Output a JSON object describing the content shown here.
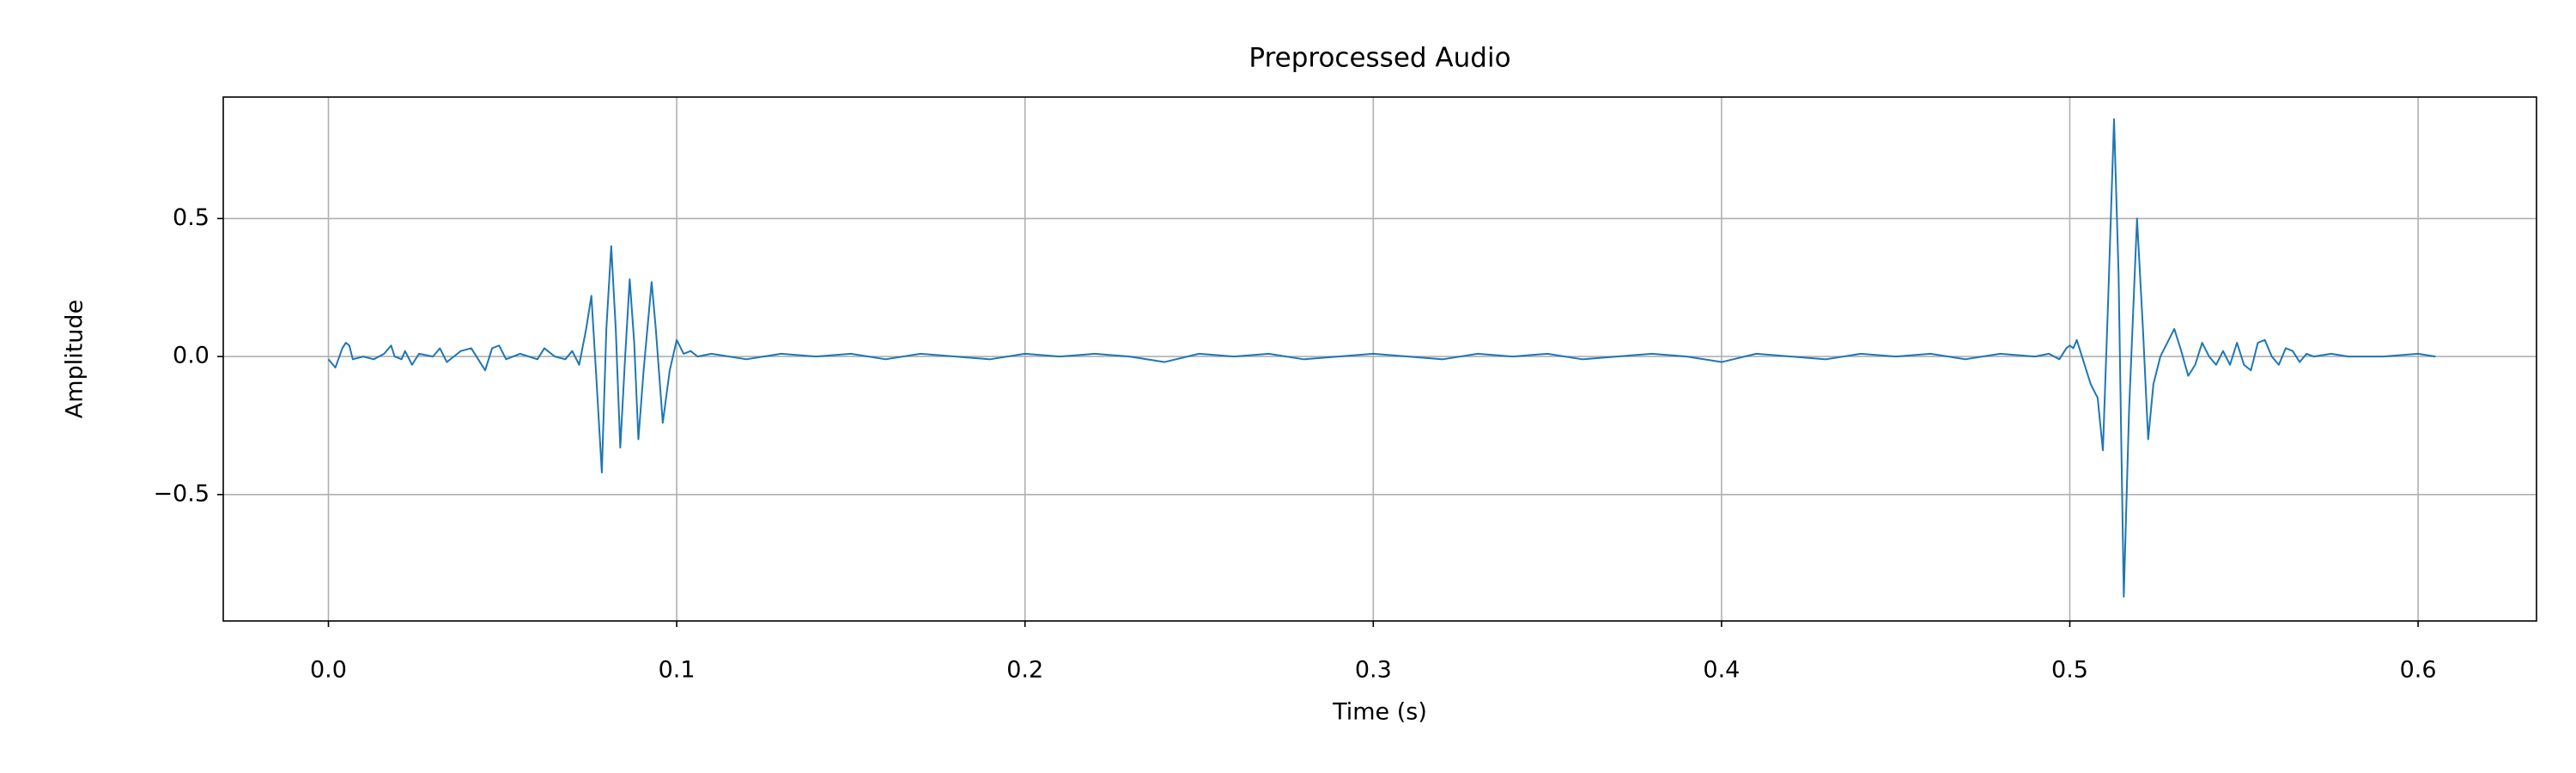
{
  "chart_data": {
    "type": "line",
    "title": "Preprocessed Audio",
    "x_label": "Time (s)",
    "y_label": "Amplitude",
    "grid": true,
    "xlim": [
      -0.0302,
      0.634
    ],
    "ylim": [
      -0.958,
      0.94
    ],
    "xticks": [
      {
        "value": 0,
        "label": "0.0"
      },
      0.1,
      0.2,
      0.3,
      0.4,
      0.5,
      0.6
    ],
    "yticks": [
      {
        "value": -0.5,
        "label": "−0.5"
      },
      {
        "value": 0,
        "label": "0.0"
      },
      0.5
    ],
    "series": [
      {
        "name": "Preprocessed Audio",
        "color": "#1f77b4",
        "x": [
          0,
          0.002,
          0.004,
          0.005,
          0.006,
          0.007,
          0.01,
          0.013,
          0.016,
          0.018,
          0.019,
          0.021,
          0.022,
          0.024,
          0.026,
          0.03,
          0.032,
          0.034,
          0.036,
          0.038,
          0.041,
          0.043,
          0.045,
          0.047,
          0.049,
          0.051,
          0.055,
          0.06,
          0.062,
          0.065,
          0.068,
          0.07,
          0.072,
          0.074,
          0.0755,
          0.0768,
          0.0785,
          0.0798,
          0.0812,
          0.0825,
          0.0838,
          0.0852,
          0.0865,
          0.0878,
          0.089,
          0.0905,
          0.0928,
          0.094,
          0.096,
          0.098,
          0.1,
          0.102,
          0.104,
          0.106,
          0.11,
          0.12,
          0.13,
          0.14,
          0.15,
          0.16,
          0.17,
          0.18,
          0.19,
          0.2,
          0.21,
          0.22,
          0.23,
          0.24,
          0.25,
          0.26,
          0.27,
          0.28,
          0.29,
          0.3,
          0.31,
          0.32,
          0.33,
          0.34,
          0.35,
          0.36,
          0.37,
          0.38,
          0.39,
          0.4,
          0.41,
          0.42,
          0.43,
          0.44,
          0.45,
          0.46,
          0.47,
          0.48,
          0.49,
          0.494,
          0.497,
          0.499,
          0.5,
          0.501,
          0.502,
          0.504,
          0.506,
          0.508,
          0.5095,
          0.511,
          0.5127,
          0.514,
          0.5155,
          0.517,
          0.5193,
          0.521,
          0.5225,
          0.524,
          0.526,
          0.528,
          0.53,
          0.532,
          0.534,
          0.536,
          0.538,
          0.54,
          0.542,
          0.544,
          0.546,
          0.548,
          0.55,
          0.552,
          0.554,
          0.556,
          0.558,
          0.56,
          0.562,
          0.564,
          0.566,
          0.568,
          0.57,
          0.575,
          0.58,
          0.59,
          0.6,
          0.605
        ],
        "values": [
          -0.01,
          -0.04,
          0.03,
          0.05,
          0.04,
          -0.01,
          0,
          -0.01,
          0.01,
          0.04,
          0,
          -0.01,
          0.02,
          -0.03,
          0.01,
          0,
          0.03,
          -0.02,
          0,
          0.02,
          0.03,
          -0.01,
          -0.05,
          0.03,
          0.04,
          -0.01,
          0.01,
          -0.01,
          0.03,
          0,
          -0.01,
          0.02,
          -0.03,
          0.1,
          0.22,
          -0.05,
          -0.42,
          0.1,
          0.4,
          0.1,
          -0.33,
          0,
          0.28,
          0.05,
          -0.3,
          -0.05,
          0.27,
          0.1,
          -0.24,
          -0.05,
          0.06,
          0.01,
          0.02,
          0,
          0.01,
          -0.01,
          0.01,
          0,
          0.01,
          -0.01,
          0.01,
          0,
          -0.01,
          0.01,
          0,
          0.01,
          0,
          -0.02,
          0.01,
          0,
          0.01,
          -0.01,
          0,
          0.01,
          0,
          -0.01,
          0.01,
          0,
          0.01,
          -0.01,
          0,
          0.01,
          0,
          -0.02,
          0.01,
          0,
          -0.01,
          0.01,
          0,
          0.01,
          -0.01,
          0.01,
          0,
          0.01,
          -0.01,
          0.03,
          0.04,
          0.03,
          0.06,
          -0.02,
          -0.1,
          -0.15,
          -0.34,
          0.2,
          0.86,
          0.3,
          -0.87,
          -0.2,
          0.5,
          0.1,
          -0.3,
          -0.1,
          0,
          0.05,
          0.1,
          0.02,
          -0.07,
          -0.03,
          0.05,
          0,
          -0.03,
          0.02,
          -0.03,
          0.05,
          -0.03,
          -0.05,
          0.05,
          0.06,
          0,
          -0.03,
          0.03,
          0.02,
          -0.02,
          0.01,
          0,
          0.01,
          0,
          0,
          0.01,
          0
        ]
      }
    ]
  }
}
